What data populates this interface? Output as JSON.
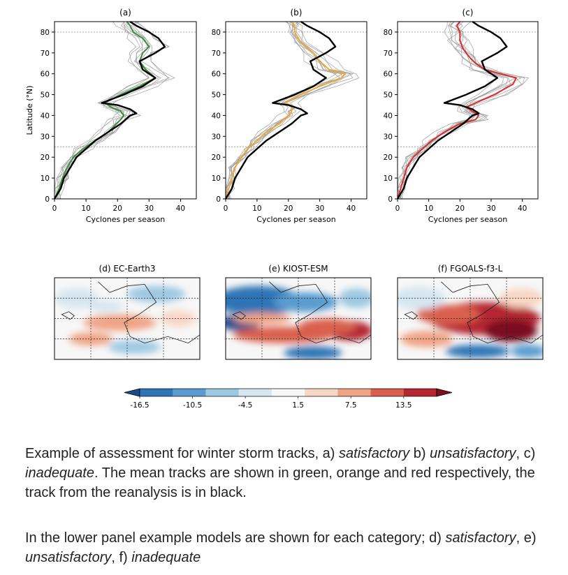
{
  "chart_data": [
    {
      "type": "line",
      "panel": "(a)",
      "xlabel": "Cyclones per season",
      "ylabel": "Latitude (°N)",
      "xlim": [
        0,
        45
      ],
      "ylim": [
        0,
        85
      ],
      "xticks": [
        0,
        10,
        20,
        30,
        40
      ],
      "yticks": [
        0,
        10,
        20,
        30,
        40,
        50,
        60,
        70,
        80
      ],
      "series": [
        {
          "role": "reanalysis",
          "color": "#000000",
          "x": [
            0,
            2,
            3,
            5,
            7,
            10,
            13,
            17,
            21,
            24,
            26,
            24,
            22,
            20,
            15,
            22,
            28,
            32,
            28,
            27,
            32,
            35,
            33,
            30,
            26,
            24
          ],
          "y": [
            0,
            5,
            10,
            15,
            20,
            24,
            28,
            32,
            36,
            40,
            41,
            43,
            44,
            45,
            46,
            50,
            54,
            58,
            62,
            66,
            70,
            73,
            77,
            80,
            83,
            85
          ]
        },
        {
          "role": "model mean",
          "color": "#3c8c3c",
          "x": [
            0,
            1.5,
            2.5,
            4,
            6,
            9,
            13,
            17,
            21,
            22,
            21,
            18,
            16,
            21,
            27,
            32,
            29,
            27,
            28,
            30,
            28,
            25,
            24,
            23
          ],
          "y": [
            0,
            5,
            10,
            15,
            20,
            24,
            28,
            32,
            38,
            40,
            42,
            44,
            46,
            50,
            54,
            58,
            62,
            66,
            70,
            73,
            77,
            80,
            83,
            85
          ]
        }
      ]
    },
    {
      "type": "line",
      "panel": "(b)",
      "xlabel": "Cyclones per season",
      "xlim": [
        0,
        45
      ],
      "ylim": [
        0,
        85
      ],
      "xticks": [
        0,
        10,
        20,
        30,
        40
      ],
      "yticks": [
        0,
        10,
        20,
        30,
        40,
        50,
        60,
        70,
        80
      ],
      "series": [
        {
          "role": "reanalysis",
          "color": "#000000",
          "x": [
            0,
            2,
            3,
            5,
            7,
            10,
            13,
            17,
            21,
            24,
            26,
            24,
            22,
            20,
            15,
            22,
            28,
            32,
            28,
            27,
            32,
            35,
            33,
            30,
            26,
            24
          ],
          "y": [
            0,
            5,
            10,
            15,
            20,
            24,
            28,
            32,
            36,
            40,
            41,
            43,
            44,
            45,
            46,
            50,
            54,
            58,
            62,
            66,
            70,
            73,
            77,
            80,
            83,
            85
          ]
        },
        {
          "role": "model mean",
          "color": "#f0a830",
          "x": [
            0,
            1,
            2,
            3,
            5,
            7,
            10,
            13,
            17,
            20,
            21,
            21,
            19,
            24,
            30,
            37,
            38,
            33,
            30,
            28,
            24,
            22,
            22,
            21
          ],
          "y": [
            0,
            5,
            10,
            15,
            20,
            24,
            28,
            32,
            36,
            40,
            42,
            44,
            46,
            50,
            54,
            58,
            60,
            62,
            66,
            70,
            75,
            80,
            83,
            85
          ]
        }
      ]
    },
    {
      "type": "line",
      "panel": "(c)",
      "xlabel": "Cyclones per season",
      "xlim": [
        0,
        45
      ],
      "ylim": [
        0,
        85
      ],
      "xticks": [
        0,
        10,
        20,
        30,
        40
      ],
      "yticks": [
        0,
        10,
        20,
        30,
        40,
        50,
        60,
        70,
        80
      ],
      "series": [
        {
          "role": "reanalysis",
          "color": "#000000",
          "x": [
            0,
            2,
            3,
            5,
            7,
            10,
            13,
            17,
            21,
            24,
            26,
            24,
            22,
            20,
            15,
            22,
            28,
            32,
            28,
            27,
            32,
            35,
            33,
            30,
            26,
            24
          ],
          "y": [
            0,
            5,
            10,
            15,
            20,
            24,
            28,
            32,
            36,
            40,
            41,
            43,
            44,
            45,
            46,
            50,
            54,
            58,
            62,
            66,
            70,
            73,
            77,
            80,
            83,
            85
          ]
        },
        {
          "role": "model mean",
          "color": "#e02a2a",
          "x": [
            0,
            1,
            2,
            3,
            5,
            8,
            11,
            15,
            20,
            25,
            26,
            24,
            22,
            25,
            31,
            37,
            38,
            33,
            28,
            25,
            23,
            21,
            20,
            20,
            19,
            20
          ],
          "y": [
            0,
            5,
            10,
            15,
            20,
            24,
            28,
            32,
            36,
            38,
            40,
            42,
            44,
            46,
            50,
            55,
            58,
            60,
            62,
            65,
            68,
            72,
            76,
            80,
            83,
            85
          ]
        }
      ]
    },
    {
      "type": "heatmap",
      "title": "(d) EC-Earth3",
      "colorbar_ticks": [
        "-16.5",
        "-10.5",
        "-4.5",
        "1.5",
        "7.5",
        "13.5"
      ]
    },
    {
      "type": "heatmap",
      "title": "(e) KIOST-ESM",
      "colorbar_ticks": [
        "-16.5",
        "-10.5",
        "-4.5",
        "1.5",
        "7.5",
        "13.5"
      ]
    },
    {
      "type": "heatmap",
      "title": "(f) FGOALS-f3-L",
      "colorbar_ticks": [
        "-16.5",
        "-10.5",
        "-4.5",
        "1.5",
        "7.5",
        "13.5"
      ]
    }
  ],
  "colorbar": {
    "ticks": [
      "-16.5",
      "-10.5",
      "-4.5",
      "1.5",
      "7.5",
      "13.5"
    ],
    "colors": [
      "#1a4d8c",
      "#2f74b5",
      "#5a9ccf",
      "#9cc8e2",
      "#d5e6f1",
      "#f7f7f7",
      "#f8d6c4",
      "#f0a384",
      "#d9604e",
      "#b42630",
      "#7a1020"
    ]
  },
  "caption": {
    "p1": {
      "t1": "Example of assessment for winter storm tracks, a) ",
      "em1": "satisfactory",
      "t2": " b) ",
      "em2": "unsatisfactory",
      "t3": ", c) ",
      "em3": "inadequate",
      "t4": ". The mean tracks are shown in green, orange and red respectively, the track from the reanalysis is in black."
    },
    "p2": {
      "t1": "In the lower panel example models are shown for each category; d) ",
      "em1": "satisfactory",
      "t2": ",  e) ",
      "em2": "unsatisfactory",
      "t3": ", f) ",
      "em3": "inadequate"
    }
  }
}
